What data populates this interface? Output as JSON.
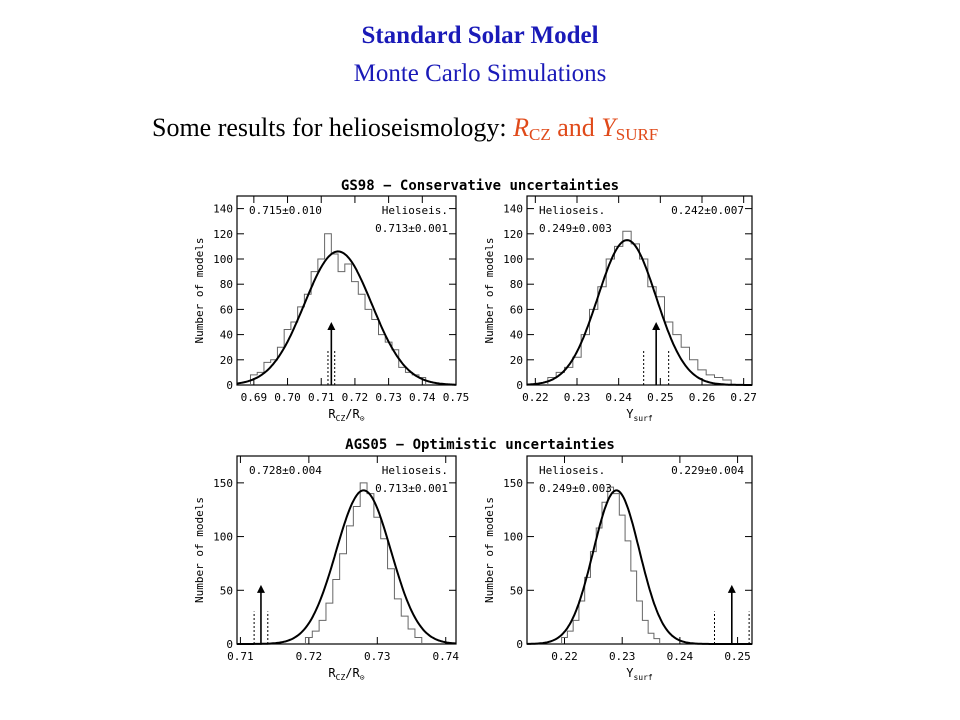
{
  "header": {
    "title": "Standard Solar Model",
    "subtitle": "Monte Carlo Simulations",
    "caption_prefix": "Some results for helioseismology:",
    "caption_var1": "R",
    "caption_var1_sub": "CZ",
    "caption_and": "and",
    "caption_var2": "Y",
    "caption_var2_sub": "SURF"
  },
  "colors": {
    "title": "#1a1ab8",
    "highlight": "#e04a1a"
  },
  "sections": [
    {
      "title": "GS98 − Conservative uncertainties"
    },
    {
      "title": "AGS05 − Optimistic uncertainties"
    }
  ],
  "chart_data": [
    {
      "type": "line",
      "group": "GS98 − Conservative uncertainties",
      "xlabel": "R_CZ/R_⊙",
      "ylabel": "Number of models",
      "xlim": [
        0.685,
        0.75
      ],
      "ylim": [
        0,
        150
      ],
      "xticks": [
        "0.69",
        "0.70",
        "0.71",
        "0.72",
        "0.73",
        "0.74",
        "0.75"
      ],
      "yticks": [
        "0",
        "20",
        "40",
        "60",
        "80",
        "100",
        "120",
        "140"
      ],
      "annotations": [
        {
          "text": "0.715±0.010",
          "pos": "top-left"
        },
        {
          "text": "Helioseis.",
          "pos": "top-right"
        },
        {
          "text": "0.713±0.001",
          "pos": "top-right-2"
        }
      ],
      "fit": {
        "mean": 0.715,
        "sigma": 0.01,
        "peak": 106
      },
      "helioseis": {
        "value": 0.713,
        "err": 0.001,
        "arrow_height": 50
      },
      "histogram": {
        "x": [
          0.69,
          0.692,
          0.694,
          0.696,
          0.698,
          0.7,
          0.702,
          0.704,
          0.706,
          0.708,
          0.71,
          0.712,
          0.714,
          0.716,
          0.718,
          0.72,
          0.722,
          0.724,
          0.726,
          0.728,
          0.73,
          0.732,
          0.734,
          0.736,
          0.738,
          0.74
        ],
        "y": [
          8,
          10,
          18,
          20,
          30,
          44,
          50,
          62,
          72,
          90,
          100,
          120,
          104,
          90,
          96,
          82,
          72,
          60,
          52,
          40,
          34,
          28,
          14,
          10,
          8,
          6
        ]
      },
      "series": [
        {
          "name": "",
          "values": []
        }
      ]
    },
    {
      "type": "line",
      "group": "GS98 − Conservative uncertainties",
      "xlabel": "Y_surf",
      "ylabel": "Number of models",
      "xlim": [
        0.218,
        0.272
      ],
      "ylim": [
        0,
        150
      ],
      "xticks": [
        "0.22",
        "0.23",
        "0.24",
        "0.25",
        "0.26",
        "0.27"
      ],
      "yticks": [
        "0",
        "20",
        "40",
        "60",
        "80",
        "100",
        "120",
        "140"
      ],
      "annotations": [
        {
          "text": "Helioseis.",
          "pos": "top-left"
        },
        {
          "text": "0.249±0.003",
          "pos": "top-left-2"
        },
        {
          "text": "0.242±0.007",
          "pos": "top-right"
        }
      ],
      "fit": {
        "mean": 0.242,
        "sigma": 0.007,
        "peak": 115
      },
      "helioseis": {
        "value": 0.249,
        "err": 0.003,
        "arrow_height": 50
      },
      "histogram": {
        "x": [
          0.224,
          0.226,
          0.228,
          0.23,
          0.232,
          0.234,
          0.236,
          0.238,
          0.24,
          0.242,
          0.244,
          0.246,
          0.248,
          0.25,
          0.252,
          0.254,
          0.256,
          0.258,
          0.26,
          0.262,
          0.264,
          0.266
        ],
        "y": [
          6,
          10,
          14,
          22,
          40,
          60,
          78,
          100,
          110,
          122,
          112,
          100,
          78,
          70,
          50,
          40,
          30,
          20,
          12,
          8,
          6,
          4
        ]
      },
      "series": [
        {
          "name": "",
          "values": []
        }
      ]
    },
    {
      "type": "line",
      "group": "AGS05 − Optimistic uncertainties",
      "xlabel": "R_CZ/R_⊙",
      "ylabel": "Number of models",
      "xlim": [
        0.7095,
        0.7415
      ],
      "ylim": [
        0,
        175
      ],
      "xticks": [
        "0.71",
        "0.72",
        "0.73",
        "0.74"
      ],
      "yticks": [
        "0",
        "50",
        "100",
        "150"
      ],
      "annotations": [
        {
          "text": "0.728±0.004",
          "pos": "top-left"
        },
        {
          "text": "Helioseis.",
          "pos": "top-right"
        },
        {
          "text": "0.713±0.001",
          "pos": "top-right-2"
        }
      ],
      "fit": {
        "mean": 0.728,
        "sigma": 0.004,
        "peak": 143
      },
      "helioseis": {
        "value": 0.713,
        "err": 0.001,
        "arrow_height": 55
      },
      "histogram": {
        "x": [
          0.72,
          0.721,
          0.722,
          0.723,
          0.724,
          0.725,
          0.726,
          0.727,
          0.728,
          0.729,
          0.73,
          0.731,
          0.732,
          0.733,
          0.734,
          0.735,
          0.736
        ],
        "y": [
          6,
          12,
          22,
          38,
          60,
          84,
          110,
          128,
          150,
          140,
          118,
          98,
          70,
          42,
          26,
          14,
          6
        ]
      },
      "series": [
        {
          "name": "",
          "values": []
        }
      ]
    },
    {
      "type": "line",
      "group": "AGS05 − Optimistic uncertainties",
      "xlabel": "Y_surf",
      "ylabel": "Number of models",
      "xlim": [
        0.2135,
        0.2525
      ],
      "ylim": [
        0,
        175
      ],
      "xticks": [
        "0.22",
        "0.23",
        "0.24",
        "0.25"
      ],
      "yticks": [
        "0",
        "50",
        "100",
        "150"
      ],
      "annotations": [
        {
          "text": "Helioseis.",
          "pos": "top-left"
        },
        {
          "text": "0.249±0.003",
          "pos": "top-left-2"
        },
        {
          "text": "0.229±0.004",
          "pos": "top-right"
        }
      ],
      "fit": {
        "mean": 0.229,
        "sigma": 0.004,
        "peak": 143
      },
      "helioseis": {
        "value": 0.249,
        "err": 0.003,
        "arrow_height": 55
      },
      "histogram": {
        "x": [
          0.22,
          0.221,
          0.222,
          0.223,
          0.224,
          0.225,
          0.226,
          0.227,
          0.228,
          0.229,
          0.23,
          0.231,
          0.232,
          0.233,
          0.234,
          0.235,
          0.236
        ],
        "y": [
          6,
          12,
          22,
          40,
          62,
          86,
          108,
          132,
          146,
          140,
          120,
          96,
          68,
          40,
          22,
          10,
          5
        ]
      },
      "series": [
        {
          "name": "",
          "values": []
        }
      ]
    }
  ]
}
